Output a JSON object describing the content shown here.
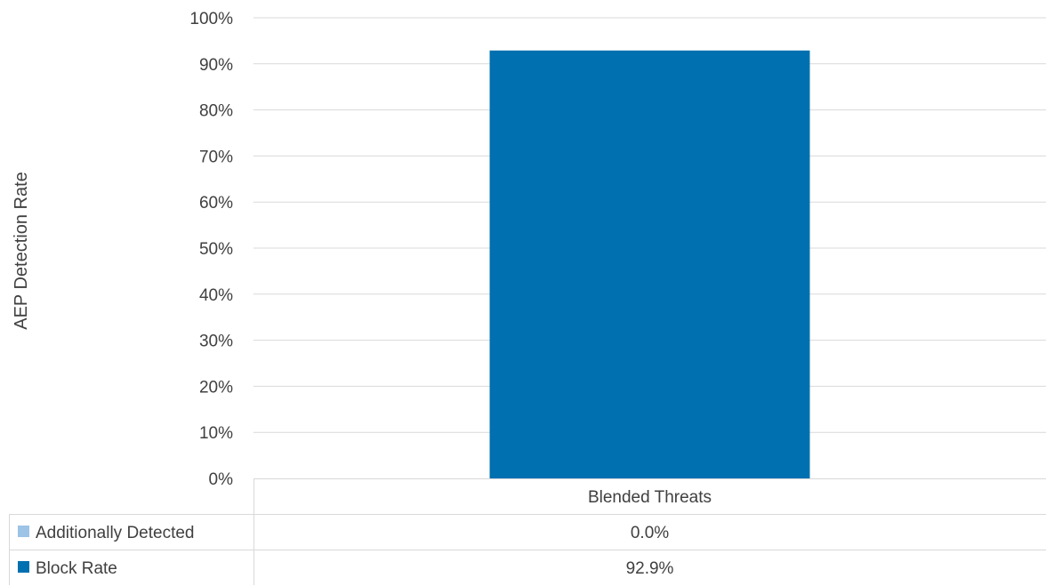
{
  "chart_data": {
    "type": "bar",
    "stacked": true,
    "categories": [
      "Blended Threats"
    ],
    "series": [
      {
        "name": "Block Rate",
        "values": [
          92.9
        ],
        "color": "#0070b0"
      },
      {
        "name": "Additionally Detected",
        "values": [
          0.0
        ],
        "color": "#9dc3e6"
      }
    ],
    "ylabel": "AEP Detection Rate",
    "xlabel": "",
    "ylim": [
      0,
      100
    ],
    "yticks": [
      0,
      10,
      20,
      30,
      40,
      50,
      60,
      70,
      80,
      90,
      100
    ],
    "ytick_labels": [
      "0%",
      "10%",
      "20%",
      "30%",
      "40%",
      "50%",
      "60%",
      "70%",
      "80%",
      "90%",
      "100%"
    ],
    "grid": true,
    "legend": "data-table-below",
    "data_table": {
      "rows": [
        {
          "series": "Additionally Detected",
          "values": [
            "0.0%"
          ]
        },
        {
          "series": "Block Rate",
          "values": [
            "92.9%"
          ]
        }
      ]
    }
  }
}
